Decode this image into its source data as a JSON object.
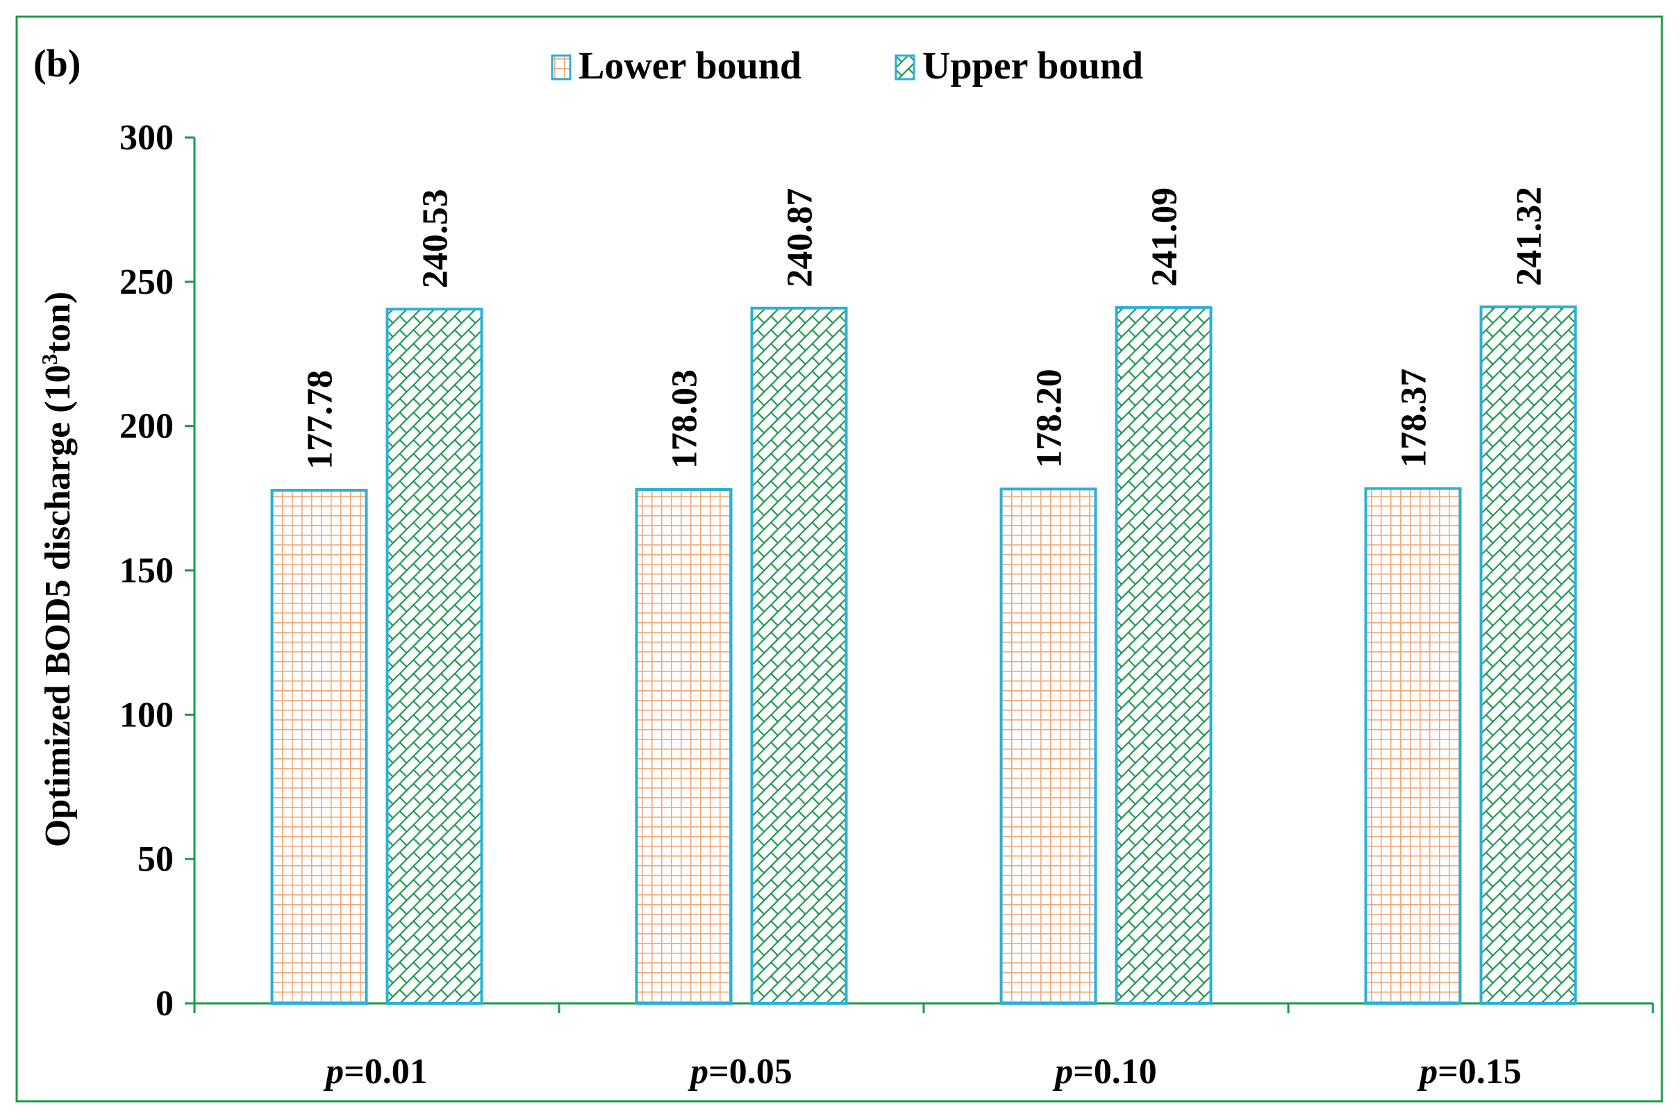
{
  "panel_label": "(b)",
  "colors": {
    "frame": "#1a9a4a",
    "axis": "#1a9a4a",
    "bar_border": "#2ab0d8",
    "lower_fill_bg": "#ffffff",
    "lower_pattern": "#f2a877",
    "upper_fill_bg": "#ffffff",
    "upper_pattern": "#1a9a4a",
    "text": "#000000"
  },
  "chart_data": {
    "type": "bar",
    "categories": [
      "p=0.01",
      "p=0.05",
      "p=0.10",
      "p=0.15"
    ],
    "category_labels": [
      {
        "prefix": "p",
        "suffix": "=0.01"
      },
      {
        "prefix": "p",
        "suffix": "=0.05"
      },
      {
        "prefix": "p",
        "suffix": "=0.10"
      },
      {
        "prefix": "p",
        "suffix": "=0.15"
      }
    ],
    "series": [
      {
        "name": "Lower bound",
        "values": [
          177.78,
          178.03,
          178.2,
          178.37
        ],
        "labels": [
          "177.78",
          "178.03",
          "178.20",
          "178.37"
        ],
        "pattern": "grid"
      },
      {
        "name": "Upper bound",
        "values": [
          240.53,
          240.87,
          241.09,
          241.32
        ],
        "labels": [
          "240.53",
          "240.87",
          "241.09",
          "241.32"
        ],
        "pattern": "brick-diagonal"
      }
    ],
    "ylabel_main": "Optimized  BOD5 discharge (10",
    "ylabel_sup": "3",
    "ylabel_end": "ton)",
    "xlabel": "",
    "ylim": [
      0,
      300
    ],
    "yticks": [
      0,
      50,
      100,
      150,
      200,
      250,
      300
    ],
    "legend_placement": "top-center",
    "grid": false
  }
}
